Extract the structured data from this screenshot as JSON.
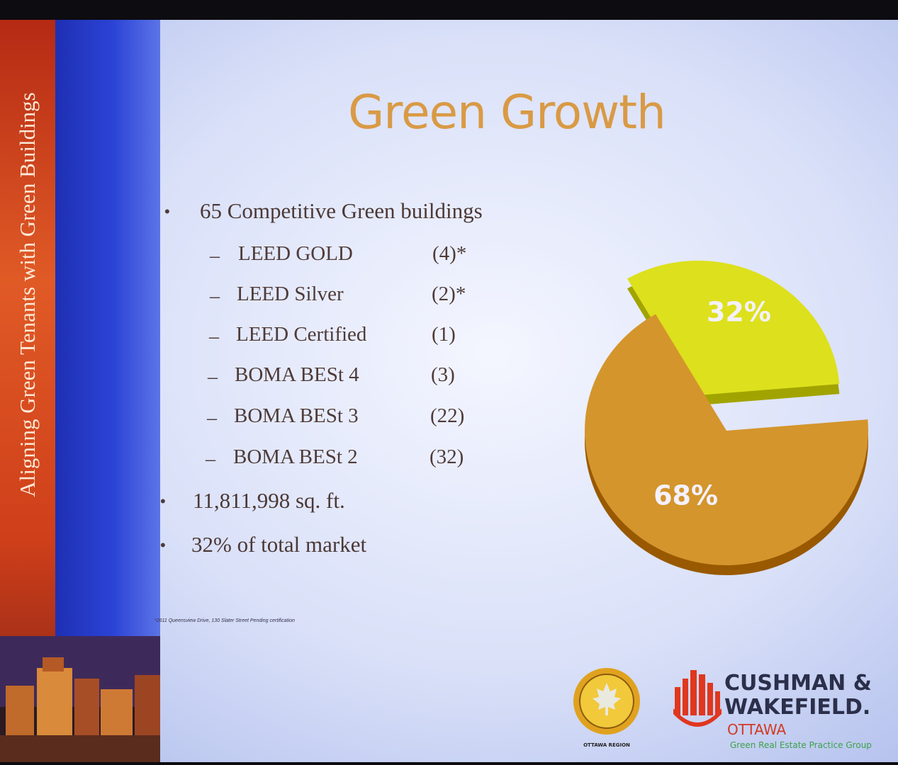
{
  "sidebar": {
    "title": "Aligning Green Tenants with Green Buildings"
  },
  "slide": {
    "title": "Green Growth",
    "bullets": [
      {
        "text": "65 Competitive Green buildings"
      },
      {
        "text": "11,811,998 sq. ft."
      },
      {
        "text": "32% of total market"
      }
    ],
    "sub_items": [
      {
        "label": "LEED GOLD",
        "count": "(4)*"
      },
      {
        "label": "LEED Silver",
        "count": "(2)*"
      },
      {
        "label": "LEED Certified",
        "count": "(1)"
      },
      {
        "label": "BOMA BESt 4",
        "count": "(3)"
      },
      {
        "label": "BOMA BESt 3",
        "count": "(22)"
      },
      {
        "label": "BOMA BESt 2",
        "count": "(32)"
      }
    ],
    "footnote": "*2611 Queensview Drive, 130 Slater Street Pending certification"
  },
  "chart_data": {
    "type": "pie",
    "categories": [
      "",
      ""
    ],
    "values": [
      32,
      68
    ],
    "labels": [
      "32%",
      "68%"
    ],
    "colors": [
      "#dde01c",
      "#d4952c"
    ]
  },
  "logos": {
    "seal_text": "OTTAWA REGION",
    "company": [
      "CUSHMAN &",
      "WAKEFIELD."
    ],
    "city": "OTTAWA",
    "group": "Green Real Estate Practice Group"
  }
}
